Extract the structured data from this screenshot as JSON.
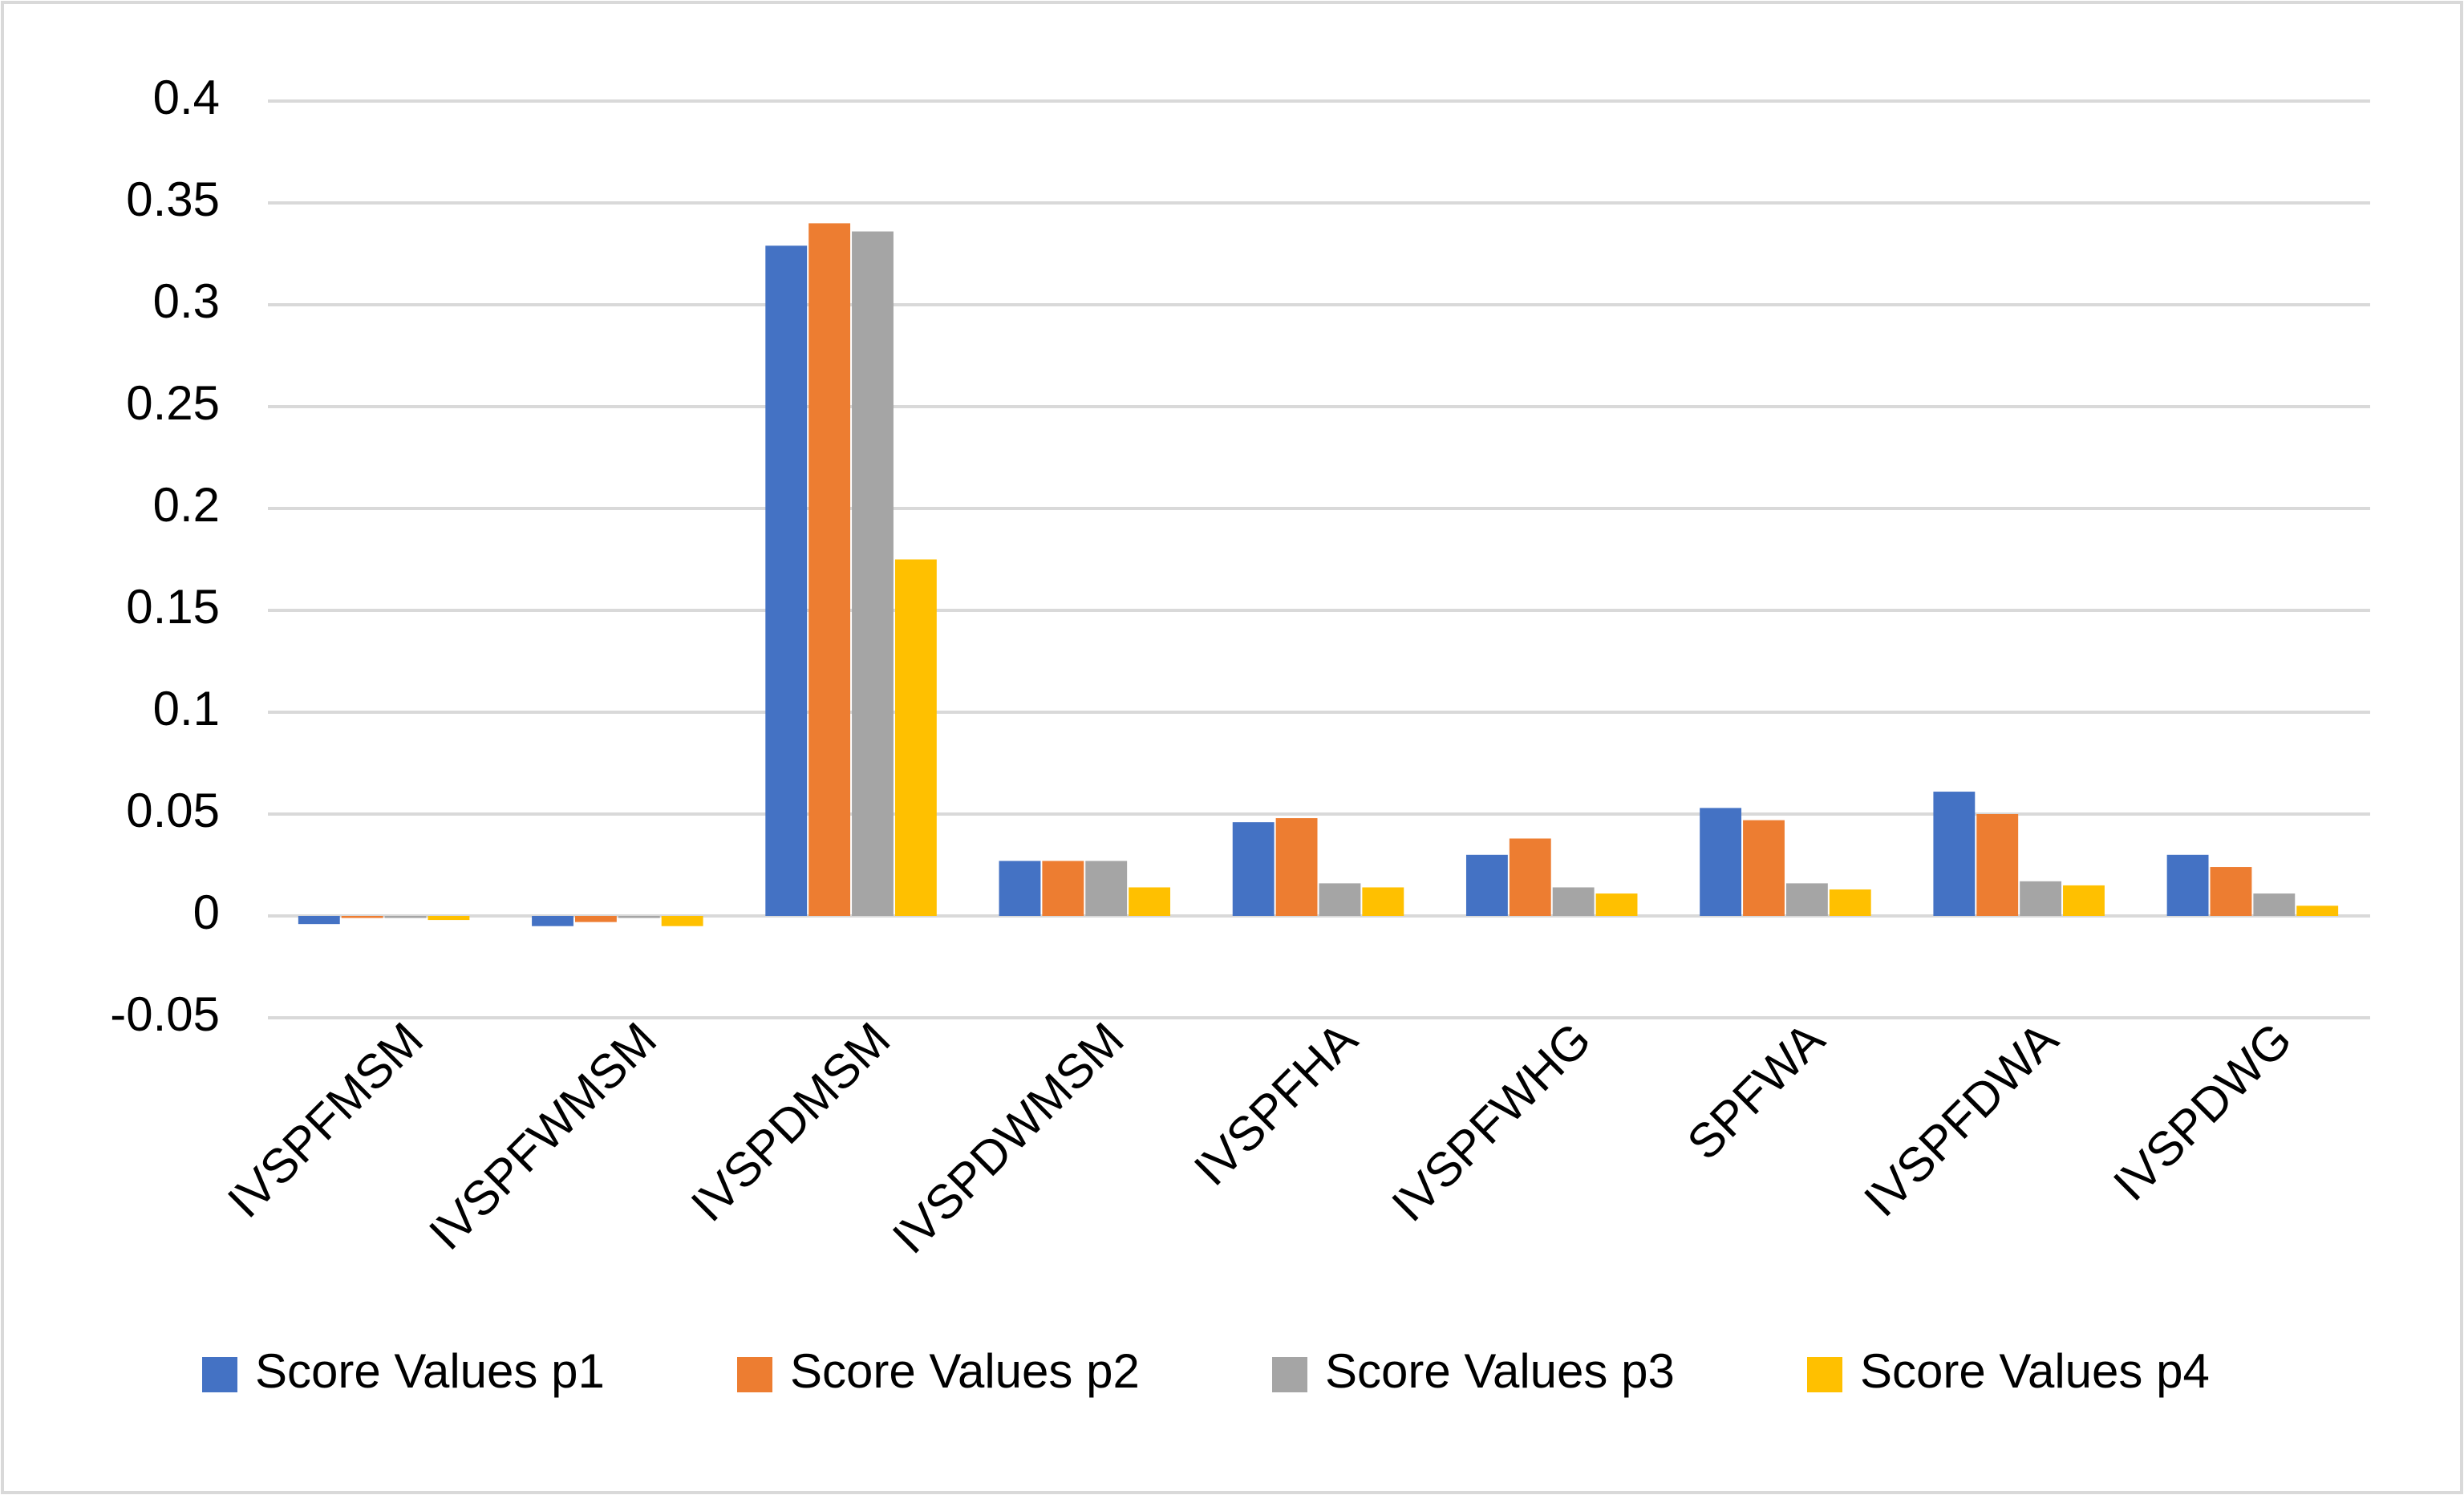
{
  "chart_data": {
    "type": "bar",
    "categories": [
      "IVSPFMSM",
      "IVSPFWMSM",
      "IVSPDMSM",
      "IVSPDWMSM",
      "IVSPFHA",
      "IVSPFWHG",
      "SPFWA",
      "IVSPFDWA",
      "IVSPDWG"
    ],
    "series": [
      {
        "name": "Score Values p1",
        "color": "#4472c4",
        "values": [
          -0.004,
          -0.005,
          0.329,
          0.027,
          0.046,
          0.03,
          0.053,
          0.061,
          0.03
        ]
      },
      {
        "name": "Score Values p2",
        "color": "#ed7d31",
        "values": [
          -0.001,
          -0.003,
          0.34,
          0.027,
          0.048,
          0.038,
          0.047,
          0.05,
          0.024
        ]
      },
      {
        "name": "Score Values p3",
        "color": "#a5a5a5",
        "values": [
          -0.001,
          -0.001,
          0.336,
          0.027,
          0.016,
          0.014,
          0.016,
          0.017,
          0.011
        ]
      },
      {
        "name": "Score Values p4",
        "color": "#ffc000",
        "values": [
          -0.002,
          -0.005,
          0.175,
          0.014,
          0.014,
          0.011,
          0.013,
          0.015,
          0.005
        ]
      }
    ],
    "ylim": [
      -0.05,
      0.4
    ],
    "yticks": [
      -0.05,
      0,
      0.05,
      0.1,
      0.15,
      0.2,
      0.25,
      0.3,
      0.35,
      0.4
    ],
    "grid": true,
    "legend": "bottom"
  }
}
